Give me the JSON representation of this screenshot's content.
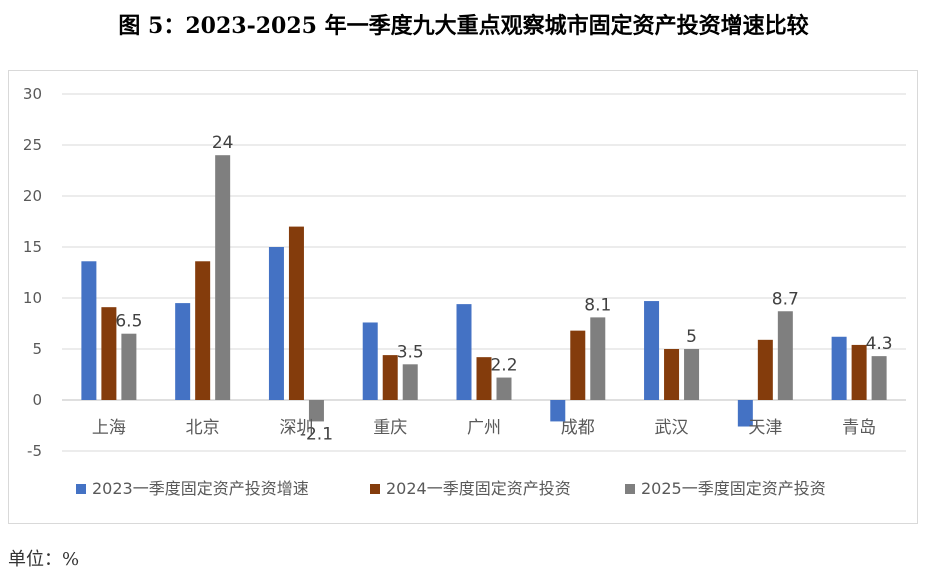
{
  "title": "图 5：2023-2025 年一季度九大重点观察城市固定资产投资增速比较",
  "unit_note": "单位：%",
  "chart_data": {
    "type": "bar",
    "title": "图 5：2023-2025 年一季度九大重点观察城市固定资产投资增速比较",
    "categories": [
      "上海",
      "北京",
      "深圳",
      "重庆",
      "广州",
      "成都",
      "武汉",
      "天津",
      "青岛"
    ],
    "series": [
      {
        "name": "2023一季度固定资产投资增速",
        "color": "#4472c4",
        "values": [
          13.6,
          9.5,
          15.0,
          7.6,
          9.4,
          -2.1,
          9.7,
          -2.6,
          6.2
        ],
        "labels": [
          "",
          "",
          "",
          "",
          "",
          "",
          "",
          "",
          ""
        ]
      },
      {
        "name": "2024一季度固定资产投资",
        "color": "#843c0c",
        "values": [
          9.1,
          13.6,
          17.0,
          4.4,
          4.2,
          6.8,
          5.0,
          5.9,
          5.4
        ],
        "labels": [
          "",
          "",
          "",
          "",
          "",
          "",
          "",
          "",
          ""
        ]
      },
      {
        "name": "2025一季度固定资产投资",
        "color": "#7f7f7f",
        "values": [
          6.5,
          24,
          -2.1,
          3.5,
          2.2,
          8.1,
          5,
          8.7,
          4.3
        ],
        "labels": [
          "6.5",
          "24",
          "-2.1",
          "3.5",
          "2.2",
          "8.1",
          "5",
          "8.7",
          "4.3"
        ]
      }
    ],
    "ylim": [
      -5,
      30
    ],
    "yticks": [
      -5,
      0,
      5,
      10,
      15,
      20,
      25,
      30
    ],
    "grid": true,
    "legend": "bottom"
  }
}
